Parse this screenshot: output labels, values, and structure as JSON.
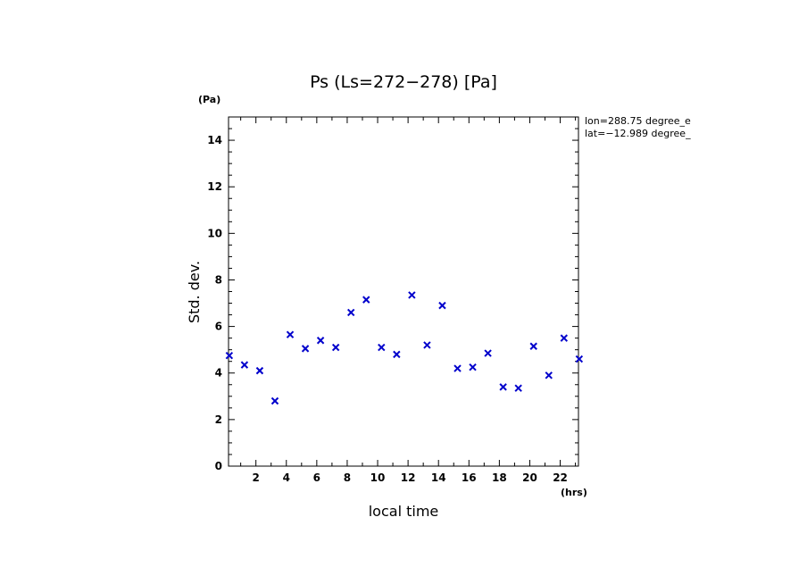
{
  "chart_data": {
    "type": "scatter",
    "title": "Ps (Ls=272−278) [Pa]",
    "xlabel": "local time",
    "ylabel": "Std. dev.",
    "x_unit": "(hrs)",
    "y_unit": "(Pa)",
    "info": [
      "lon=288.75 degree_e",
      "lat=−12.989 degree_"
    ],
    "xlim": [
      0.2,
      23.2
    ],
    "ylim": [
      0,
      15
    ],
    "x_ticks": [
      2,
      4,
      6,
      8,
      10,
      12,
      14,
      16,
      18,
      20,
      22
    ],
    "y_ticks": [
      0,
      2,
      4,
      6,
      8,
      10,
      12,
      14
    ],
    "x_tick_labels": [
      "2",
      "4",
      "6",
      "8",
      "10",
      "12",
      "14",
      "16",
      "18",
      "20",
      "22"
    ],
    "y_tick_labels": [
      "0",
      "2",
      "4",
      "6",
      "8",
      "10",
      "12",
      "14"
    ],
    "marker": "x",
    "marker_color": "#0000cc",
    "grid": false,
    "x": [
      0.25,
      1.25,
      2.25,
      3.25,
      4.25,
      5.25,
      6.25,
      7.25,
      8.25,
      9.25,
      10.25,
      11.25,
      12.25,
      13.25,
      14.25,
      15.25,
      16.25,
      17.25,
      18.25,
      19.25,
      20.25,
      21.25,
      22.25,
      23.25
    ],
    "y": [
      4.75,
      4.35,
      4.1,
      2.8,
      5.65,
      5.05,
      5.4,
      5.1,
      6.6,
      7.15,
      5.1,
      4.8,
      7.35,
      5.2,
      6.9,
      4.2,
      4.25,
      4.85,
      3.4,
      3.35,
      5.15,
      3.9,
      5.5,
      4.6
    ]
  }
}
